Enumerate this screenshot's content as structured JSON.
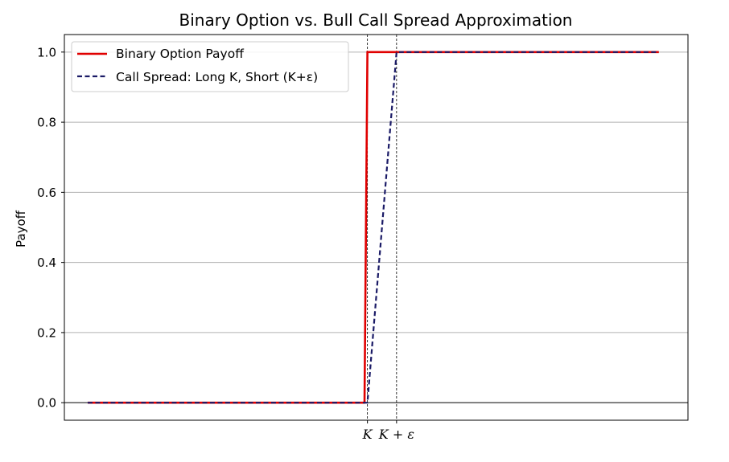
{
  "chart_data": {
    "type": "line",
    "title": "Binary Option vs. Bull Call Spread Approximation",
    "xlabel": "",
    "ylabel": "Payoff",
    "x_ticks": [
      "K",
      "K + ε"
    ],
    "y_ticks": [
      "0.0",
      "0.2",
      "0.4",
      "0.6",
      "0.8",
      "1.0"
    ],
    "ylim": [
      -0.05,
      1.05
    ],
    "grid": "horizontal",
    "legend_position": "top-left",
    "reference_lines": [
      {
        "label": "K",
        "x": 100,
        "style": "dashed vertical"
      },
      {
        "label": "K + ε",
        "x": 105,
        "style": "dashed vertical"
      },
      {
        "y": 0,
        "style": "solid horizontal"
      }
    ],
    "xlim": [
      48,
      155
    ],
    "series": [
      {
        "name": "Binary Option Payoff",
        "color": "#e00000",
        "style": "solid",
        "x": [
          52,
          99.5,
          100,
          150
        ],
        "y": [
          0,
          0,
          1,
          1
        ]
      },
      {
        "name": "Call Spread: Long K, Short (K+ε)",
        "color": "#1a1a66",
        "style": "dashed",
        "x": [
          52,
          100,
          105,
          150
        ],
        "y": [
          0,
          0,
          1,
          1
        ]
      }
    ]
  }
}
